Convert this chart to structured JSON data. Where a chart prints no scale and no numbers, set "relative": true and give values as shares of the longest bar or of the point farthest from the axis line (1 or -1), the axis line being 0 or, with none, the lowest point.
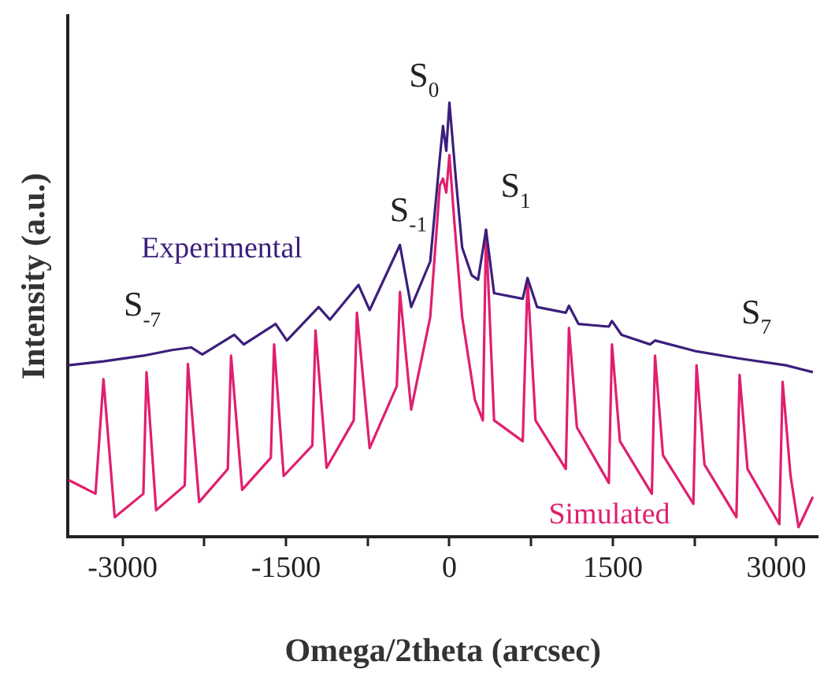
{
  "chart_data": {
    "type": "line",
    "relative": true,
    "xlabel": "Omega/2theta (arcsec)",
    "ylabel": "Intensity (a.u.)",
    "xlim": [
      -3500,
      3380
    ],
    "xticks": [
      -3000,
      {
        "value": -2250,
        "label": null
      },
      -1500,
      {
        "value": -750,
        "label": null
      },
      0,
      {
        "value": 750,
        "label": null
      },
      1500,
      {
        "value": 2250,
        "label": null
      },
      3000
    ],
    "grid": false,
    "legend": false,
    "marker": "none",
    "line_style": "solid",
    "series": [
      {
        "name": "Experimental",
        "color": "#3b1f7c",
        "x": [
          -3497,
          -3175,
          -2809,
          -2546,
          -2370,
          -2268,
          -1975,
          -1887,
          -1595,
          -1492,
          -1200,
          -1097,
          -834,
          -732,
          -454,
          -351,
          -176,
          -88,
          -59,
          -29,
          0,
          59,
          117,
          205,
          263,
          336,
          410,
          673,
          717,
          805,
          1068,
          1097,
          1185,
          1463,
          1492,
          1580,
          1843,
          1887,
          2268,
          2648,
          3087,
          3336
        ],
        "values": [
          0.395,
          0.404,
          0.417,
          0.43,
          0.436,
          0.42,
          0.465,
          0.443,
          0.49,
          0.452,
          0.529,
          0.5,
          0.58,
          0.522,
          0.672,
          0.529,
          0.634,
          0.873,
          0.946,
          0.889,
          1,
          0.825,
          0.666,
          0.602,
          0.592,
          0.707,
          0.561,
          0.548,
          0.596,
          0.529,
          0.516,
          0.532,
          0.49,
          0.484,
          0.497,
          0.465,
          0.443,
          0.452,
          0.427,
          0.411,
          0.395,
          0.379
        ]
      },
      {
        "name": "Simulated",
        "color": "#e01f6e",
        "x": [
          -3497,
          -3248,
          -3175,
          -3072,
          -2809,
          -2780,
          -2692,
          -2429,
          -2400,
          -2297,
          -2034,
          -2004,
          -1902,
          -1639,
          -1609,
          -1521,
          -1258,
          -1229,
          -1127,
          -878,
          -849,
          -732,
          -483,
          -454,
          -351,
          -176,
          -88,
          -59,
          -29,
          0,
          44,
          117,
          234,
          307,
          336,
          410,
          673,
          717,
          790,
          1068,
          1097,
          1170,
          1463,
          1492,
          1565,
          1858,
          1887,
          1960,
          2239,
          2268,
          2341,
          2634,
          2663,
          2736,
          3028,
          3058,
          3131,
          3204,
          3336
        ],
        "values": [
          0.131,
          0.099,
          0.363,
          0.045,
          0.099,
          0.379,
          0.061,
          0.118,
          0.398,
          0.08,
          0.156,
          0.417,
          0.108,
          0.182,
          0.443,
          0.14,
          0.21,
          0.475,
          0.159,
          0.268,
          0.516,
          0.204,
          0.347,
          0.564,
          0.293,
          0.506,
          0.809,
          0.825,
          0.793,
          0.879,
          0.729,
          0.506,
          0.315,
          0.268,
          0.707,
          0.268,
          0.22,
          0.592,
          0.268,
          0.156,
          0.481,
          0.252,
          0.124,
          0.443,
          0.22,
          0.099,
          0.417,
          0.188,
          0.076,
          0.395,
          0.166,
          0.045,
          0.373,
          0.156,
          0.029,
          0.357,
          0.14,
          0.022,
          0.092
        ]
      }
    ],
    "annotations": [
      "S$_{0}$",
      "S$_{-1}$",
      "S$_{1}$",
      "S$_{-7}$",
      "S$_{7}$"
    ]
  }
}
